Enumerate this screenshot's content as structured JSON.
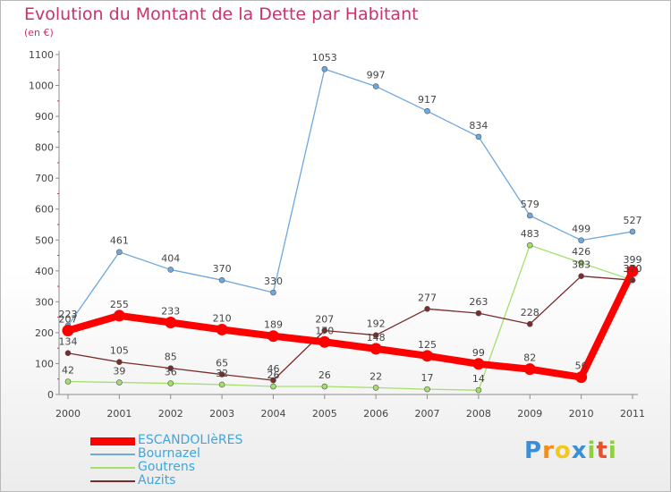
{
  "title": "Evolution du Montant de la Dette par Habitant",
  "unit_label": "(en €)",
  "colors": {
    "title": "#c8326e",
    "legend_text": "#3ea6df",
    "axis": "#8c8c8c",
    "tick_marks": "#c8326e",
    "label": "#444444"
  },
  "chart_data": {
    "type": "line",
    "title": "Evolution du Montant de la Dette par Habitant",
    "ylabel": "(en €)",
    "xlabel": "",
    "x": [
      "2000",
      "2001",
      "2002",
      "2003",
      "2004",
      "2005",
      "2006",
      "2007",
      "2008",
      "2009",
      "2010",
      "2011"
    ],
    "ylim": [
      0,
      1100
    ],
    "yticks": [
      0,
      100,
      200,
      300,
      400,
      500,
      600,
      700,
      800,
      900,
      1000,
      1100
    ],
    "grid": false,
    "legend_position": "bottom-left",
    "series": [
      {
        "name": "ESCANDOLIèRES",
        "color": "#ff0000",
        "values": [
          207,
          255,
          233,
          210,
          189,
          170,
          148,
          125,
          99,
          82,
          56,
          399
        ]
      },
      {
        "name": "Bournazel",
        "color": "#6fa8dc",
        "values": [
          223,
          461,
          404,
          370,
          330,
          1053,
          997,
          917,
          834,
          579,
          499,
          527
        ]
      },
      {
        "name": "Goutrens",
        "color": "#a3e06b",
        "values": [
          42,
          39,
          36,
          32,
          26,
          26,
          22,
          17,
          14,
          483,
          426,
          370
        ]
      },
      {
        "name": "Auzits",
        "color": "#7a2b2b",
        "values": [
          134,
          105,
          85,
          65,
          46,
          207,
          192,
          277,
          263,
          228,
          383,
          370
        ]
      }
    ]
  },
  "logo": {
    "text": "Proxiti",
    "letters": [
      "P",
      "r",
      "o",
      "x",
      "i",
      "t",
      "i"
    ],
    "colors": [
      "#3a8fd8",
      "#f28c1c",
      "#f2c81c",
      "#3a8fd8",
      "#8fcf3a",
      "#e8522c",
      "#8fcf3a"
    ]
  }
}
